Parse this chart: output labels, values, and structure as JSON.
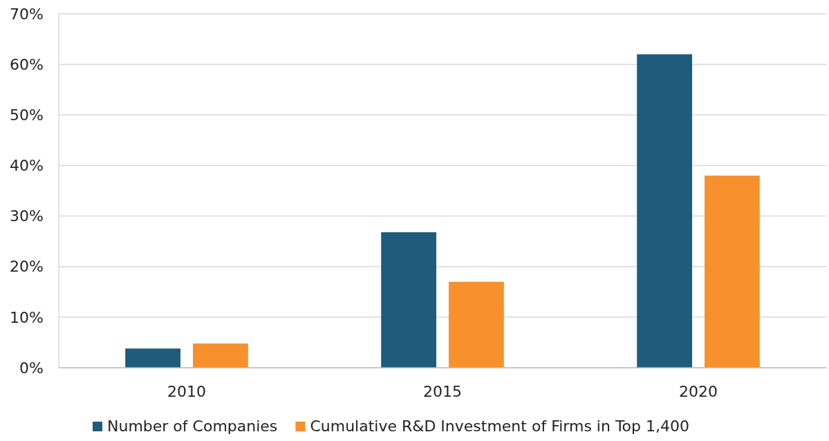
{
  "chart_data": {
    "type": "bar",
    "categories": [
      "2010",
      "2015",
      "2020"
    ],
    "series": [
      {
        "name": "Number of Companies",
        "color": "#1f5c7c",
        "values": [
          3.8,
          26.8,
          62
        ]
      },
      {
        "name": "Cumulative R&D Investment of Firms in Top 1,400",
        "color": "#f7902d",
        "values": [
          4.8,
          17,
          38
        ]
      }
    ],
    "ylim": [
      0,
      70
    ],
    "yticks": [
      {
        "value": 0,
        "label": "0%"
      },
      {
        "value": 10,
        "label": "10%"
      },
      {
        "value": 20,
        "label": "20%"
      },
      {
        "value": 30,
        "label": "30%"
      },
      {
        "value": 40,
        "label": "40%"
      },
      {
        "value": 50,
        "label": "50%"
      },
      {
        "value": 60,
        "label": "60%"
      },
      {
        "value": 70,
        "label": "70%"
      }
    ],
    "grid": "y",
    "legend": "bottom"
  }
}
